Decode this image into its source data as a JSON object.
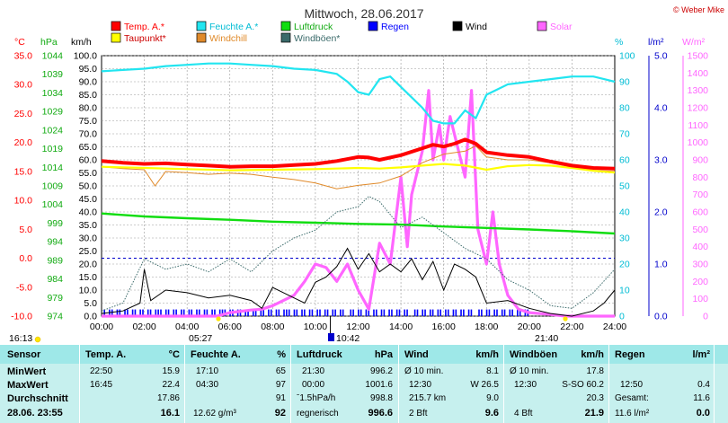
{
  "chart_data": {
    "type": "line",
    "title": "Mittwoch, 28.06.2017",
    "copyright": "© Weber Mike",
    "legend": [
      {
        "name": "Temp. A.*",
        "color": "#ff0000"
      },
      {
        "name": "Feuchte A.*",
        "color": "#22e5f0"
      },
      {
        "name": "Luftdruck",
        "color": "#11dd11"
      },
      {
        "name": "Regen",
        "color": "#0000ff"
      },
      {
        "name": "Wind",
        "color": "#000000"
      },
      {
        "name": "Solar",
        "color": "#ff66ff"
      },
      {
        "name": "Taupunkt*",
        "color": "#ffff00"
      },
      {
        "name": "Windchill",
        "color": "#e08a2a"
      },
      {
        "name": "Windböen*",
        "color": "#3a6a6a"
      }
    ],
    "axes": {
      "temp_unit": "°C",
      "pressure_unit": "hPa",
      "wind_unit": "km/h",
      "humidity_unit": "%",
      "rain_unit": "l/m²",
      "solar_unit": "W/m²",
      "temp_ticks": [
        "35.0",
        "30.0",
        "25.0",
        "20.0",
        "15.0",
        "10.0",
        "5.0",
        "0.0",
        "-5.0",
        "-10.0"
      ],
      "pressure_ticks": [
        "1044",
        "1039",
        "1034",
        "1029",
        "1024",
        "1019",
        "1014",
        "1009",
        "1004",
        "999",
        "994",
        "989",
        "984",
        "979",
        "974"
      ],
      "wind_ticks": [
        "100.0",
        "95.0",
        "90.0",
        "85.0",
        "80.0",
        "75.0",
        "70.0",
        "65.0",
        "60.0",
        "55.0",
        "50.0",
        "45.0",
        "40.0",
        "35.0",
        "30.0",
        "25.0",
        "20.0",
        "15.0",
        "10.0",
        "5.0",
        "0.0"
      ],
      "humidity_ticks": [
        "100",
        "90",
        "80",
        "70",
        "60",
        "50",
        "40",
        "30",
        "20",
        "10",
        "0"
      ],
      "rain_ticks": [
        "5.0",
        "4.0",
        "3.0",
        "2.0",
        "1.0",
        "0.0"
      ],
      "solar_ticks": [
        "1500",
        "1400",
        "1300",
        "1200",
        "1100",
        "1000",
        "900",
        "800",
        "700",
        "600",
        "500",
        "400",
        "300",
        "200",
        "100",
        "0"
      ],
      "x_ticks": [
        "00:00",
        "02:00",
        "04:00",
        "06:00",
        "08:00",
        "10:00",
        "12:00",
        "14:00",
        "16:00",
        "18:00",
        "20:00",
        "22:00",
        "24:00"
      ]
    },
    "markers": {
      "sunrise": "05:27",
      "sunset": "21:40",
      "left_time": "16:13",
      "rain_time": "10:42"
    },
    "series": [
      {
        "name": "Temp. A.*",
        "unit": "°C",
        "x": [
          0,
          1,
          2,
          3,
          4,
          5,
          6,
          7,
          8,
          9,
          10,
          11,
          12,
          12.5,
          13,
          14,
          15,
          15.5,
          16,
          16.5,
          17,
          17.5,
          18,
          19,
          20,
          21,
          22,
          23,
          24
        ],
        "values": [
          16.8,
          16.5,
          16.3,
          16.4,
          16.2,
          16.0,
          15.8,
          15.9,
          15.9,
          16.1,
          16.3,
          16.8,
          17.5,
          17.4,
          17.0,
          17.8,
          19.0,
          19.6,
          19.3,
          19.8,
          20.5,
          19.8,
          18.3,
          17.8,
          17.5,
          16.7,
          16.0,
          15.6,
          15.5
        ]
      },
      {
        "name": "Taupunkt*",
        "unit": "°C",
        "x": [
          0,
          2,
          4,
          6,
          8,
          10,
          12,
          13,
          14,
          15,
          16,
          17,
          18,
          19,
          20,
          21,
          22,
          23,
          24
        ],
        "values": [
          15.8,
          15.6,
          15.4,
          15.2,
          15.3,
          15.4,
          15.6,
          15.5,
          15.7,
          16.0,
          16.3,
          16.0,
          15.3,
          15.9,
          16.1,
          16.0,
          15.6,
          15.1,
          14.8
        ]
      },
      {
        "name": "Windchill",
        "unit": "°C",
        "x": [
          0,
          1,
          2,
          2.5,
          3,
          4,
          5,
          6,
          7,
          8,
          9,
          10,
          11,
          12,
          13,
          14,
          15,
          16,
          17,
          17.5,
          18,
          19,
          20,
          21,
          22,
          23,
          24
        ],
        "values": [
          15.8,
          15.5,
          15.3,
          12.5,
          15.0,
          14.8,
          14.5,
          14.7,
          14.5,
          14.0,
          13.6,
          13.0,
          12.0,
          12.6,
          13.0,
          14.2,
          16.5,
          18.0,
          18.5,
          19.4,
          17.5,
          17.0,
          17.0,
          16.5,
          15.8,
          15.2,
          15.0
        ]
      },
      {
        "name": "Feuchte A.*",
        "unit": "%",
        "x": [
          0,
          1,
          2,
          3,
          4,
          5,
          6,
          7,
          8,
          9,
          10,
          11,
          11.5,
          12,
          12.5,
          13,
          13.5,
          14,
          15,
          15.5,
          16,
          16.5,
          17,
          17.5,
          18,
          19,
          20,
          21,
          22,
          23,
          23.5,
          24
        ],
        "values": [
          94,
          94.5,
          95,
          96,
          96.5,
          97,
          97,
          96.5,
          96,
          95,
          94.5,
          93,
          90,
          86,
          85,
          91,
          92,
          88,
          80,
          75,
          74,
          74,
          79,
          76,
          85,
          89,
          90,
          91,
          92,
          92,
          91,
          90
        ]
      },
      {
        "name": "Luftdruck",
        "unit": "hPa",
        "x": [
          0,
          2,
          4,
          6,
          8,
          10,
          12,
          14,
          16,
          18,
          20,
          22,
          24
        ],
        "values": [
          1001.6,
          1000.8,
          1000.3,
          999.9,
          999.4,
          999.1,
          998.8,
          998.6,
          998.1,
          997.7,
          997.3,
          996.8,
          996.2
        ]
      },
      {
        "name": "Wind",
        "unit": "km/h",
        "x": [
          0,
          1,
          1.8,
          2,
          2.3,
          3,
          4,
          5,
          6,
          7,
          7.5,
          8,
          9,
          9.5,
          10,
          10.5,
          11,
          11.5,
          12,
          12.5,
          13,
          13.5,
          14,
          14.5,
          15,
          15.5,
          16,
          16.5,
          17,
          17.5,
          18,
          19,
          20,
          21,
          22,
          23,
          23.5,
          24
        ],
        "values": [
          1,
          2,
          5,
          18,
          6,
          10,
          9,
          7,
          8,
          6,
          3,
          11,
          7,
          5,
          13,
          15,
          19,
          26,
          18,
          24,
          17,
          20,
          17,
          22,
          14,
          21,
          10,
          20,
          18,
          15,
          5,
          6,
          3,
          1,
          0,
          2,
          5,
          10
        ]
      },
      {
        "name": "Windböen*",
        "unit": "km/h",
        "x": [
          0,
          1,
          2,
          3,
          4,
          5,
          6,
          7,
          8,
          9,
          10,
          11,
          12,
          12.5,
          13,
          14,
          15,
          16,
          17,
          18,
          19,
          20,
          21,
          22,
          23,
          24
        ],
        "values": [
          2,
          5,
          22,
          18,
          20,
          17,
          22,
          17,
          25,
          30,
          33,
          40,
          42,
          46,
          44,
          34,
          38,
          32,
          26,
          22,
          14,
          10,
          4,
          3,
          9,
          18
        ]
      },
      {
        "name": "Solar",
        "unit": "W/m²",
        "x": [
          0,
          5.4,
          6,
          7,
          7.5,
          8,
          9,
          9.5,
          10,
          10.5,
          11,
          11.5,
          12,
          12.5,
          13,
          13.5,
          14,
          14.3,
          14.5,
          15,
          15.3,
          15.5,
          15.8,
          16,
          16.3,
          16.6,
          17,
          17.3,
          17.6,
          18,
          18.3,
          18.6,
          19,
          19.5,
          20,
          21,
          21.7,
          24
        ],
        "values": [
          0,
          0,
          20,
          35,
          40,
          60,
          120,
          200,
          300,
          280,
          200,
          300,
          150,
          40,
          420,
          300,
          800,
          400,
          700,
          950,
          1300,
          900,
          1100,
          900,
          1150,
          1000,
          800,
          1300,
          500,
          300,
          600,
          300,
          120,
          40,
          20,
          10,
          0,
          0
        ]
      },
      {
        "name": "Regen",
        "unit": "l/m²",
        "x": [
          0,
          5,
          10.7,
          12,
          12.5,
          13,
          20,
          21,
          24
        ],
        "values": [
          0.4,
          0.4,
          0.4,
          0.4,
          0.4,
          0.4,
          0.0,
          0.0,
          0.0
        ]
      }
    ]
  },
  "table": {
    "headers": {
      "sensor": "Sensor",
      "temp": "Temp. A.",
      "temp_unit": "°C",
      "hum": "Feuchte A.",
      "hum_unit": "%",
      "press": "Luftdruck",
      "press_unit": "hPa",
      "wind": "Wind",
      "wind_unit": "km/h",
      "gust": "Windböen",
      "gust_unit": "km/h",
      "rain": "Regen",
      "rain_unit": "l/m²"
    },
    "rows": {
      "min": {
        "label": "MinWert",
        "temp_time": "22:50",
        "temp": "15.9",
        "hum_time": "17:10",
        "hum": "65",
        "press_time": "21:30",
        "press": "996.2",
        "wind_label": "Ø 10 min.",
        "wind": "8.1",
        "gust_label": "Ø 10 min.",
        "gust": "17.8"
      },
      "max": {
        "label": "MaxWert",
        "temp_time": "16:45",
        "temp": "22.4",
        "hum_time": "04:30",
        "hum": "97",
        "press_time": "00:00",
        "press": "1001.6",
        "wind_time": "12:30",
        "wind": "W 26.5",
        "gust_time": "12:30",
        "gust": "S-SO 60.2",
        "rain_time": "12:50",
        "rain": "0.4"
      },
      "avg": {
        "label": "Durchschnitt",
        "temp": "17.86",
        "hum": "91",
        "press_label": "ˉ1.5hPa/h",
        "press": "998.8",
        "wind_label": "215.7 km",
        "wind": "9.0",
        "gust": "20.3",
        "rain_label": "Gesamt:",
        "rain": "11.6"
      },
      "current": {
        "label": "28.06. 23:55",
        "temp": "16.1",
        "hum_label": "12.62 g/m³",
        "hum": "92",
        "press_label": "regnerisch",
        "press": "996.6",
        "wind_label": "2 Bft",
        "wind": "9.6",
        "gust_label": "4 Bft",
        "gust": "21.9",
        "rain_label": "11.6 l/m²",
        "rain": "0.0"
      }
    }
  }
}
